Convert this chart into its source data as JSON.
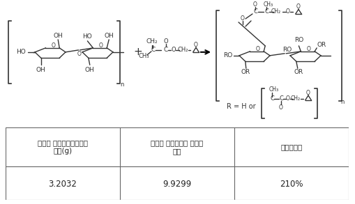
{
  "table_headers": [
    "조사전 셀룰로오스부직포\n무게(g)",
    "조사후 셀룰로오스 부직포\n무게",
    "그라프팅률"
  ],
  "table_values": [
    "3.2032",
    "9.9299",
    "210%"
  ],
  "bg_color": "#ffffff",
  "border_color": "#666666",
  "text_color": "#222222",
  "header_fontsize": 7.5,
  "value_fontsize": 8.5,
  "fig_width": 5.1,
  "fig_height": 2.93,
  "dpi": 100,
  "chem_color": "#333333",
  "chem_lw": 1.0
}
